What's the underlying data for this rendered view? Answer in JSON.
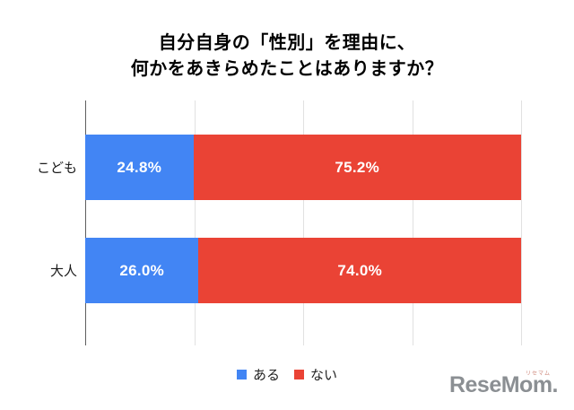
{
  "title": {
    "line1": "自分自身の「性別」を理由に、",
    "line2": "何かをあきらめたことはありますか？"
  },
  "chart_data": {
    "type": "bar",
    "orientation": "horizontal",
    "stacked": true,
    "categories": [
      "こども",
      "大人"
    ],
    "series": [
      {
        "name": "ある",
        "color": "#4285F4",
        "values": [
          24.8,
          26.0
        ]
      },
      {
        "name": "ない",
        "color": "#EA4335",
        "values": [
          75.2,
          74.0
        ]
      }
    ],
    "value_labels": [
      [
        "24.8%",
        "75.2%"
      ],
      [
        "26.0%",
        "74.0%"
      ]
    ],
    "xlim": [
      0,
      100
    ],
    "gridlines_percent": [
      0,
      25,
      50,
      75,
      100
    ],
    "grid": true,
    "legend_position": "bottom",
    "colors": {
      "grid": "#e1e1e1",
      "axis": "#5f5f5f",
      "value_label": "#ffffff"
    }
  },
  "legend": {
    "items": [
      {
        "label": "ある",
        "color": "#4285F4"
      },
      {
        "label": "ない",
        "color": "#EA4335"
      }
    ]
  },
  "logo": {
    "text": "ReseMom.",
    "ruby": "リセマム",
    "color": "#8b8f93"
  }
}
